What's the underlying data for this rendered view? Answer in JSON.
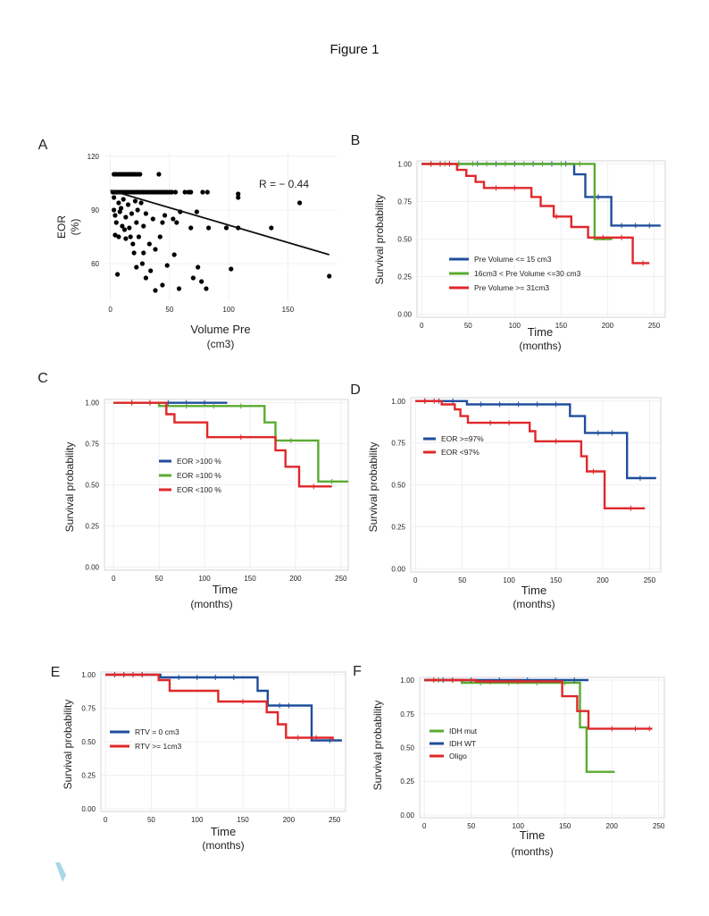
{
  "figure_title": "Figure 1",
  "chart_data": [
    {
      "id": "A",
      "panel_label": "A",
      "type": "scatter",
      "xlabel": "Volume Pre",
      "xlabel2": "(cm3)",
      "ylabel": "EOR",
      "ylabel2": "(%)",
      "xlim": [
        -5,
        192
      ],
      "ylim": [
        39,
        122
      ],
      "xticks": [
        0,
        50,
        100,
        150
      ],
      "yticks": [
        60,
        90,
        120
      ],
      "annotation": "R = − 0.44",
      "trend": [
        [
          0,
          101
        ],
        [
          185,
          65
        ]
      ],
      "points": [
        [
          3,
          110
        ],
        [
          5,
          110
        ],
        [
          7,
          110
        ],
        [
          9,
          110
        ],
        [
          11,
          110
        ],
        [
          13,
          110
        ],
        [
          15,
          110
        ],
        [
          17,
          110
        ],
        [
          19,
          110
        ],
        [
          21,
          110
        ],
        [
          23,
          110
        ],
        [
          25,
          110
        ],
        [
          41,
          110
        ],
        [
          2,
          100
        ],
        [
          4,
          100
        ],
        [
          6,
          100
        ],
        [
          8,
          100
        ],
        [
          10,
          100
        ],
        [
          12,
          100
        ],
        [
          14,
          100
        ],
        [
          16,
          100
        ],
        [
          18,
          100
        ],
        [
          20,
          100
        ],
        [
          22,
          100
        ],
        [
          24,
          100
        ],
        [
          26,
          100
        ],
        [
          28,
          100
        ],
        [
          30,
          100
        ],
        [
          32,
          100
        ],
        [
          34,
          100
        ],
        [
          36,
          100
        ],
        [
          38,
          100
        ],
        [
          40,
          100
        ],
        [
          42,
          100
        ],
        [
          44,
          100
        ],
        [
          46,
          100
        ],
        [
          48,
          100
        ],
        [
          50,
          100
        ],
        [
          52,
          100
        ],
        [
          55,
          100
        ],
        [
          63,
          100
        ],
        [
          66,
          100
        ],
        [
          68,
          100
        ],
        [
          78,
          100
        ],
        [
          82,
          100
        ],
        [
          108,
          99
        ],
        [
          108,
          97
        ],
        [
          3,
          97
        ],
        [
          7,
          94
        ],
        [
          11,
          96
        ],
        [
          15,
          93
        ],
        [
          21,
          95
        ],
        [
          26,
          94
        ],
        [
          4,
          87
        ],
        [
          8,
          89
        ],
        [
          13,
          86
        ],
        [
          18,
          88
        ],
        [
          23,
          90
        ],
        [
          30,
          88
        ],
        [
          36,
          85
        ],
        [
          46,
          87
        ],
        [
          53,
          85
        ],
        [
          59,
          89
        ],
        [
          73,
          89
        ],
        [
          5,
          83
        ],
        [
          10,
          81
        ],
        [
          16,
          80
        ],
        [
          22,
          83
        ],
        [
          28,
          81
        ],
        [
          44,
          83
        ],
        [
          56,
          83
        ],
        [
          68,
          80
        ],
        [
          83,
          80
        ],
        [
          98,
          80
        ],
        [
          108,
          80
        ],
        [
          4,
          76
        ],
        [
          7,
          75
        ],
        [
          13,
          74
        ],
        [
          19,
          71
        ],
        [
          24,
          75
        ],
        [
          33,
          71
        ],
        [
          42,
          75
        ],
        [
          54,
          65
        ],
        [
          20,
          66
        ],
        [
          28,
          66
        ],
        [
          38,
          68
        ],
        [
          27,
          60
        ],
        [
          34,
          56
        ],
        [
          22,
          58
        ],
        [
          48,
          59
        ],
        [
          30,
          52
        ],
        [
          44,
          48
        ],
        [
          38,
          45
        ],
        [
          58,
          46
        ],
        [
          70,
          52
        ],
        [
          77,
          50
        ],
        [
          81,
          46
        ],
        [
          74,
          58
        ],
        [
          102,
          57
        ],
        [
          136,
          80
        ],
        [
          160,
          94
        ],
        [
          185,
          53
        ],
        [
          6,
          54
        ],
        [
          3,
          90
        ],
        [
          9,
          91
        ],
        [
          12,
          79
        ],
        [
          17,
          75
        ]
      ]
    },
    {
      "id": "B",
      "panel_label": "B",
      "type": "line",
      "subtype": "survival",
      "xlabel": "Time",
      "xlabel2": "(months)",
      "ylabel": "Survival probability",
      "xlim": [
        -5,
        262
      ],
      "ylim": [
        -0.02,
        1.02
      ],
      "xticks": [
        0,
        50,
        100,
        150,
        200,
        250
      ],
      "yticks": [
        0.0,
        0.25,
        0.5,
        0.75,
        1.0
      ],
      "ytick_labels": [
        "0.00",
        "0.25",
        "0.50",
        "0.75",
        "1.00"
      ],
      "legend_position": "center-left",
      "series": [
        {
          "name": "Pre Volume <= 15 cm3",
          "color": "#1f4e9c",
          "steps": [
            [
              0,
              1.0
            ],
            [
              164,
              0.93
            ],
            [
              176,
              0.78
            ],
            [
              204,
              0.59
            ],
            [
              257,
              0.59
            ]
          ],
          "censor": [
            10,
            20,
            30,
            40,
            60,
            80,
            100,
            120,
            140,
            155,
            190,
            215,
            230,
            245
          ]
        },
        {
          "name": "16cm3 < Pre Volume <=30 cm3",
          "color": "#5aab30",
          "steps": [
            [
              0,
              1.0
            ],
            [
              186,
              0.5
            ],
            [
              205,
              0.5
            ]
          ],
          "censor": [
            10,
            25,
            40,
            55,
            70,
            90,
            110,
            130,
            150,
            170
          ]
        },
        {
          "name": "Pre Volume  >= 31cm3",
          "color": "#e0272a",
          "steps": [
            [
              0,
              1.0
            ],
            [
              38,
              0.96
            ],
            [
              48,
              0.92
            ],
            [
              58,
              0.88
            ],
            [
              67,
              0.84
            ],
            [
              118,
              0.78
            ],
            [
              128,
              0.72
            ],
            [
              142,
              0.65
            ],
            [
              161,
              0.58
            ],
            [
              179,
              0.51
            ],
            [
              227,
              0.34
            ],
            [
              245,
              0.34
            ]
          ],
          "censor": [
            10,
            20,
            30,
            80,
            100,
            145,
            195,
            215,
            238
          ]
        }
      ]
    },
    {
      "id": "C",
      "panel_label": "C",
      "type": "line",
      "subtype": "survival",
      "xlabel": "Time",
      "xlabel2": "(months)",
      "ylabel": "Survival probability",
      "xlim": [
        -10,
        258
      ],
      "ylim": [
        -0.02,
        1.02
      ],
      "xticks": [
        0,
        50,
        100,
        150,
        200,
        250
      ],
      "yticks": [
        0.0,
        0.25,
        0.5,
        0.75,
        1.0
      ],
      "ytick_labels": [
        "0.00",
        "0.25",
        "0.50",
        "0.75",
        "1.00"
      ],
      "legend_position": "center",
      "series": [
        {
          "name": "EOR >100 %",
          "color": "#1f4e9c",
          "steps": [
            [
              0,
              1.0
            ],
            [
              125,
              1.0
            ]
          ],
          "censor": [
            20,
            40,
            60,
            80,
            100
          ]
        },
        {
          "name": "EOR =100 %",
          "color": "#5aab30",
          "steps": [
            [
              0,
              1.0
            ],
            [
              50,
              0.98
            ],
            [
              166,
              0.88
            ],
            [
              178,
              0.77
            ],
            [
              225,
              0.52
            ],
            [
              258,
              0.52
            ]
          ],
          "censor": [
            20,
            80,
            110,
            140,
            195,
            240
          ]
        },
        {
          "name": "EOR <100 %",
          "color": "#e0272a",
          "steps": [
            [
              0,
              1.0
            ],
            [
              58,
              0.93
            ],
            [
              67,
              0.88
            ],
            [
              103,
              0.79
            ],
            [
              178,
              0.71
            ],
            [
              189,
              0.61
            ],
            [
              204,
              0.49
            ],
            [
              240,
              0.49
            ]
          ],
          "censor": [
            20,
            40,
            140,
            220
          ]
        }
      ]
    },
    {
      "id": "D",
      "panel_label": "D",
      "type": "line",
      "subtype": "survival",
      "xlabel": "Time",
      "xlabel2": "(months)",
      "ylabel": "Survival probability",
      "xlim": [
        -5,
        262
      ],
      "ylim": [
        -0.02,
        1.02
      ],
      "xticks": [
        0,
        50,
        100,
        150,
        200,
        250
      ],
      "yticks": [
        0.0,
        0.25,
        0.5,
        0.75,
        1.0
      ],
      "ytick_labels": [
        "0.00",
        "0.25",
        "0.50",
        "0.75",
        "1.00"
      ],
      "legend_position": "top-left",
      "series": [
        {
          "name": "EOR >=97%",
          "color": "#1f4e9c",
          "steps": [
            [
              0,
              1.0
            ],
            [
              55,
              0.98
            ],
            [
              165,
              0.91
            ],
            [
              181,
              0.81
            ],
            [
              226,
              0.54
            ],
            [
              257,
              0.54
            ]
          ],
          "censor": [
            10,
            25,
            40,
            70,
            90,
            110,
            130,
            150,
            195,
            210,
            240
          ]
        },
        {
          "name": "EOR <97%",
          "color": "#e0272a",
          "steps": [
            [
              0,
              1.0
            ],
            [
              28,
              0.98
            ],
            [
              42,
              0.95
            ],
            [
              48,
              0.91
            ],
            [
              56,
              0.87
            ],
            [
              122,
              0.82
            ],
            [
              128,
              0.76
            ],
            [
              177,
              0.67
            ],
            [
              183,
              0.58
            ],
            [
              202,
              0.36
            ],
            [
              245,
              0.36
            ]
          ],
          "censor": [
            10,
            20,
            80,
            100,
            150,
            190,
            230
          ]
        }
      ]
    },
    {
      "id": "E",
      "panel_label": "E",
      "type": "line",
      "subtype": "survival",
      "xlabel": "Time",
      "xlabel2": "(months)",
      "ylabel": "Survival probability",
      "xlim": [
        -5,
        262
      ],
      "ylim": [
        -0.02,
        1.02
      ],
      "xticks": [
        0,
        50,
        100,
        150,
        200,
        250
      ],
      "yticks": [
        0.0,
        0.25,
        0.5,
        0.75,
        1.0
      ],
      "ytick_labels": [
        "0.00",
        "0.25",
        "0.50",
        "0.75",
        "1.00"
      ],
      "legend_position": "bottom-left",
      "series": [
        {
          "name": "RTV = 0 cm3",
          "color": "#1f4e9c",
          "steps": [
            [
              0,
              1.0
            ],
            [
              60,
              0.98
            ],
            [
              166,
              0.88
            ],
            [
              177,
              0.77
            ],
            [
              225,
              0.51
            ],
            [
              258,
              0.51
            ]
          ],
          "censor": [
            10,
            20,
            30,
            40,
            80,
            100,
            120,
            140,
            190,
            200,
            245
          ]
        },
        {
          "name": "RTV >= 1cm3",
          "color": "#e0272a",
          "steps": [
            [
              0,
              1.0
            ],
            [
              58,
              0.96
            ],
            [
              70,
              0.88
            ],
            [
              123,
              0.8
            ],
            [
              176,
              0.72
            ],
            [
              188,
              0.63
            ],
            [
              197,
              0.53
            ],
            [
              248,
              0.51
            ]
          ],
          "censor": [
            10,
            20,
            30,
            40,
            150,
            210,
            230
          ]
        }
      ]
    },
    {
      "id": "F",
      "panel_label": "F",
      "type": "line",
      "subtype": "survival",
      "xlabel": "Time",
      "xlabel2": "(months)",
      "ylabel": "Survival probability",
      "xlim": [
        -5,
        256
      ],
      "ylim": [
        -0.02,
        1.02
      ],
      "xticks": [
        0,
        50,
        100,
        150,
        200,
        250
      ],
      "yticks": [
        0.0,
        0.25,
        0.5,
        0.75,
        1.0
      ],
      "ytick_labels": [
        "0.00",
        "0.25",
        "0.50",
        "0.75",
        "1.00"
      ],
      "legend_position": "bottom-left",
      "series": [
        {
          "name": "IDH mut",
          "color": "#5aab30",
          "steps": [
            [
              0,
              1.0
            ],
            [
              40,
              0.98
            ],
            [
              166,
              0.65
            ],
            [
              173,
              0.32
            ],
            [
              203,
              0.32
            ]
          ],
          "censor": [
            15,
            30,
            60,
            90,
            120,
            150
          ]
        },
        {
          "name": "IDH WT",
          "color": "#1f4e9c",
          "steps": [
            [
              0,
              1.0
            ],
            [
              175,
              1.0
            ]
          ],
          "censor": [
            20,
            50,
            80,
            110,
            140,
            160
          ]
        },
        {
          "name": "Oligo",
          "color": "#e0272a",
          "steps": [
            [
              0,
              1.0
            ],
            [
              55,
              0.99
            ],
            [
              147,
              0.88
            ],
            [
              163,
              0.77
            ],
            [
              175,
              0.64
            ],
            [
              243,
              0.64
            ]
          ],
          "censor": [
            10,
            30,
            70,
            100,
            200,
            225,
            240
          ]
        }
      ]
    }
  ]
}
